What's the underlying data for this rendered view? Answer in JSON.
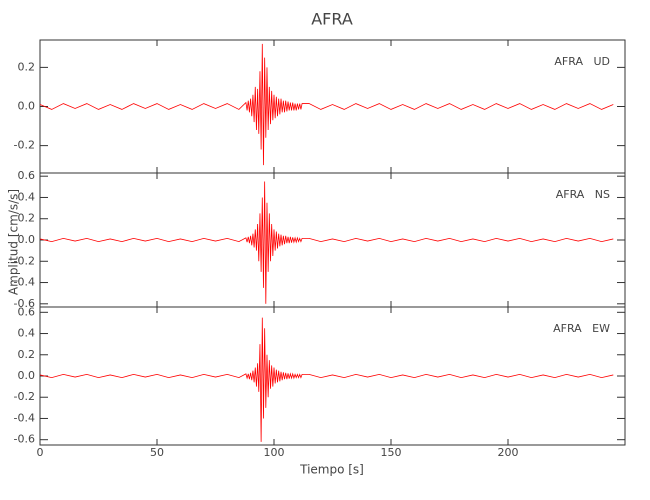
{
  "chart_data": {
    "type": "line",
    "title": "AFRA",
    "x_label": "Tiempo [s]",
    "y_label": "Amplitud [cm/s/s]",
    "color": "#ff0000",
    "xlim": [
      0,
      250
    ],
    "xticks": [
      0,
      50,
      100,
      150,
      200
    ],
    "x": [
      0,
      5,
      10,
      15,
      20,
      25,
      30,
      35,
      40,
      45,
      50,
      55,
      60,
      65,
      70,
      75,
      80,
      85,
      88,
      88.5,
      89,
      89.5,
      90,
      90.5,
      91,
      91.5,
      92,
      92.5,
      93,
      93.5,
      94,
      94.5,
      95,
      95.5,
      96,
      96.5,
      97,
      97.5,
      98,
      98.5,
      99,
      99.5,
      100,
      100.5,
      101,
      101.5,
      102,
      102.5,
      103,
      103.5,
      104,
      104.5,
      105,
      105.5,
      106,
      106.5,
      107,
      107.5,
      108,
      108.5,
      109,
      109.5,
      110,
      110.5,
      111,
      111.5,
      112,
      115,
      120,
      125,
      130,
      135,
      140,
      145,
      150,
      155,
      160,
      165,
      170,
      175,
      180,
      185,
      190,
      195,
      200,
      205,
      210,
      215,
      220,
      225,
      230,
      235,
      240,
      245
    ],
    "panels": [
      {
        "name": "AFRA   UD",
        "ylim": [
          -0.34,
          0.34
        ],
        "yticks": [
          -0.2,
          {
            "value": 0,
            "label": "0.0"
          },
          0.2
        ],
        "values": [
          0.01,
          -0.015,
          0.015,
          -0.01,
          0.015,
          -0.015,
          0.01,
          -0.015,
          0.015,
          -0.01,
          0.015,
          -0.015,
          0.01,
          -0.015,
          0.015,
          -0.01,
          0.015,
          -0.015,
          0.02,
          -0.02,
          0.03,
          -0.03,
          0.04,
          -0.05,
          0.06,
          -0.08,
          0.1,
          -0.12,
          0.09,
          -0.14,
          0.18,
          -0.22,
          0.32,
          -0.3,
          0.25,
          -0.16,
          0.2,
          -0.12,
          0.1,
          -0.09,
          0.08,
          -0.07,
          0.06,
          -0.06,
          0.05,
          -0.05,
          0.04,
          -0.04,
          0.04,
          -0.03,
          0.03,
          -0.03,
          0.03,
          -0.025,
          0.025,
          -0.02,
          0.02,
          -0.02,
          0.02,
          -0.02,
          0.015,
          -0.02,
          0.015,
          -0.015,
          0.015,
          -0.015,
          0.015,
          0.015,
          -0.015,
          0.01,
          -0.015,
          0.015,
          -0.01,
          0.015,
          -0.015,
          0.01,
          -0.015,
          0.015,
          -0.01,
          0.015,
          -0.015,
          0.01,
          -0.015,
          0.015,
          -0.01,
          0.015,
          -0.015,
          0.01,
          -0.015,
          0.015,
          -0.01,
          0.015,
          -0.015,
          0.01
        ]
      },
      {
        "name": "AFRA   NS",
        "ylim": [
          -0.63,
          0.63
        ],
        "yticks": [
          -0.6,
          -0.4,
          -0.2,
          {
            "value": 0,
            "label": "0.0"
          },
          0.2,
          0.4,
          0.6
        ],
        "values": [
          0.01,
          -0.015,
          0.015,
          -0.01,
          0.015,
          -0.015,
          0.01,
          -0.015,
          0.015,
          -0.01,
          0.015,
          -0.015,
          0.01,
          -0.015,
          0.015,
          -0.01,
          0.015,
          -0.015,
          0.02,
          -0.02,
          0.03,
          -0.03,
          0.04,
          -0.05,
          0.06,
          -0.07,
          0.1,
          -0.1,
          0.15,
          -0.2,
          0.25,
          -0.3,
          0.4,
          -0.45,
          0.55,
          -0.6,
          0.35,
          -0.3,
          0.25,
          -0.2,
          0.15,
          -0.15,
          0.1,
          -0.1,
          0.08,
          -0.08,
          0.06,
          -0.06,
          0.05,
          -0.05,
          0.04,
          -0.04,
          0.04,
          -0.03,
          0.03,
          -0.03,
          0.03,
          -0.025,
          0.025,
          -0.02,
          0.02,
          -0.02,
          0.02,
          -0.015,
          0.015,
          -0.015,
          0.015,
          0.015,
          -0.015,
          0.01,
          -0.015,
          0.015,
          -0.01,
          0.015,
          -0.015,
          0.01,
          -0.015,
          0.015,
          -0.01,
          0.015,
          -0.015,
          0.01,
          -0.015,
          0.015,
          -0.01,
          0.015,
          -0.015,
          0.01,
          -0.015,
          0.015,
          -0.01,
          0.015,
          -0.015,
          0.01
        ]
      },
      {
        "name": "AFRA   EW",
        "ylim": [
          -0.65,
          0.65
        ],
        "yticks": [
          -0.6,
          -0.4,
          -0.2,
          {
            "value": 0,
            "label": "0.0"
          },
          0.2,
          0.4,
          0.6
        ],
        "values": [
          0.01,
          -0.015,
          0.015,
          -0.01,
          0.015,
          -0.015,
          0.01,
          -0.015,
          0.015,
          -0.01,
          0.015,
          -0.015,
          0.01,
          -0.015,
          0.015,
          -0.01,
          0.015,
          -0.015,
          0.02,
          -0.02,
          0.02,
          -0.03,
          0.03,
          -0.04,
          0.05,
          -0.06,
          0.08,
          -0.1,
          0.12,
          -0.15,
          0.3,
          -0.62,
          0.55,
          -0.4,
          0.45,
          -0.3,
          0.2,
          -0.2,
          0.15,
          -0.12,
          0.1,
          -0.1,
          0.08,
          -0.07,
          0.06,
          -0.06,
          0.05,
          -0.05,
          0.04,
          -0.04,
          0.035,
          -0.03,
          0.03,
          -0.03,
          0.025,
          -0.025,
          0.02,
          -0.02,
          0.02,
          -0.02,
          0.015,
          -0.015,
          0.015,
          -0.015,
          0.015,
          -0.015,
          0.015,
          0.015,
          -0.015,
          0.01,
          -0.015,
          0.015,
          -0.01,
          0.015,
          -0.015,
          0.01,
          -0.015,
          0.015,
          -0.01,
          0.015,
          -0.015,
          0.01,
          -0.015,
          0.015,
          -0.01,
          0.015,
          -0.015,
          0.01,
          -0.015,
          0.015,
          -0.01,
          0.015,
          -0.015,
          0.01
        ]
      }
    ]
  }
}
